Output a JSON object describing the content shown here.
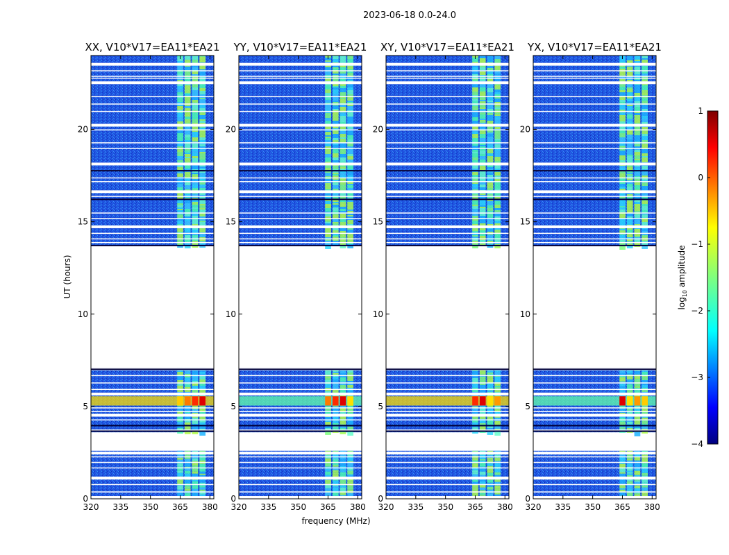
{
  "chart_data": {
    "type": "heatmap",
    "suptitle": "2023-06-18 0.0-24.0",
    "xlabel": "frequency (MHz)",
    "ylabel": "UT (hours)",
    "xlim": [
      320,
      382
    ],
    "ylim": [
      0,
      24
    ],
    "xticks": [
      320,
      335,
      350,
      365,
      380
    ],
    "yticks": [
      0,
      5,
      10,
      15,
      20
    ],
    "panels": [
      {
        "title": "XX, V10*V17=EA11*EA21",
        "pol": "XX"
      },
      {
        "title": "YY, V10*V17=EA11*EA21",
        "pol": "YY"
      },
      {
        "title": "XY, V10*V17=EA11*EA21",
        "pol": "XY"
      },
      {
        "title": "YX, V10*V17=EA11*EA21",
        "pol": "YX"
      }
    ],
    "colorbar": {
      "label": "log",
      "label_sub": "10",
      "label_rest": " amplitude",
      "range": [
        -4,
        1
      ],
      "ticks": [
        -4,
        -3,
        -2,
        -1,
        0,
        1
      ],
      "tick_labels": [
        "−4",
        "−3",
        "−2",
        "−1",
        "0",
        "1"
      ],
      "colormap": "jet"
    },
    "data_time_ranges_hours": [
      [
        0,
        2.6
      ],
      [
        3.6,
        7.1
      ],
      [
        13.7,
        24
      ]
    ],
    "flagged_time_bands_hours": [
      [
        2.55,
        3.55
      ],
      [
        7.1,
        13.65
      ],
      [
        3.7,
        3.72
      ],
      [
        3.88,
        3.95
      ],
      [
        16.2,
        16.3
      ],
      [
        14.1,
        14.15
      ]
    ],
    "bright_frequency_band_mhz": [
      363.5,
      381
    ],
    "rfi_time_band_hours": [
      5.05,
      5.55
    ]
  }
}
